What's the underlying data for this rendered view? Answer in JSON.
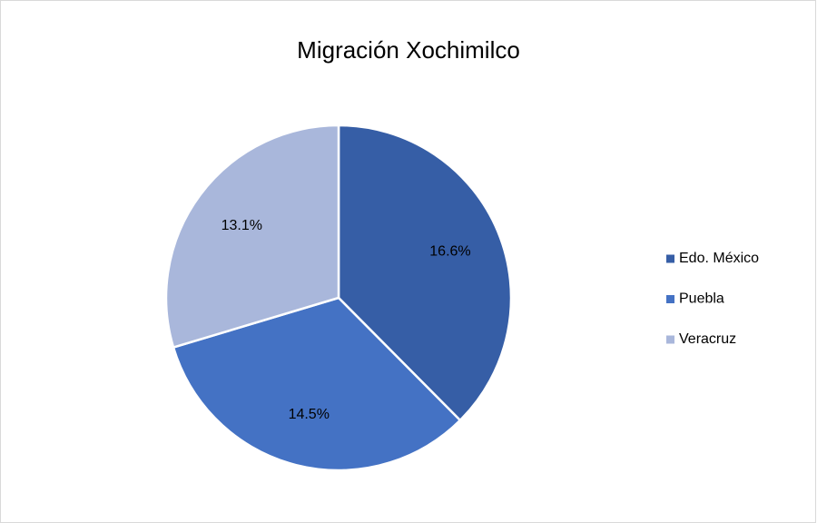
{
  "chart_data": {
    "type": "pie",
    "title": "Migración Xochimilco",
    "categories": [
      "Edo. México",
      "Puebla",
      "Veracruz"
    ],
    "values": [
      16.6,
      14.5,
      13.1
    ],
    "value_labels": [
      "16.6%",
      "14.5%",
      "13.1%"
    ],
    "colors": [
      "#365ea6",
      "#4472c4",
      "#a9b7db"
    ],
    "legend": "right"
  }
}
